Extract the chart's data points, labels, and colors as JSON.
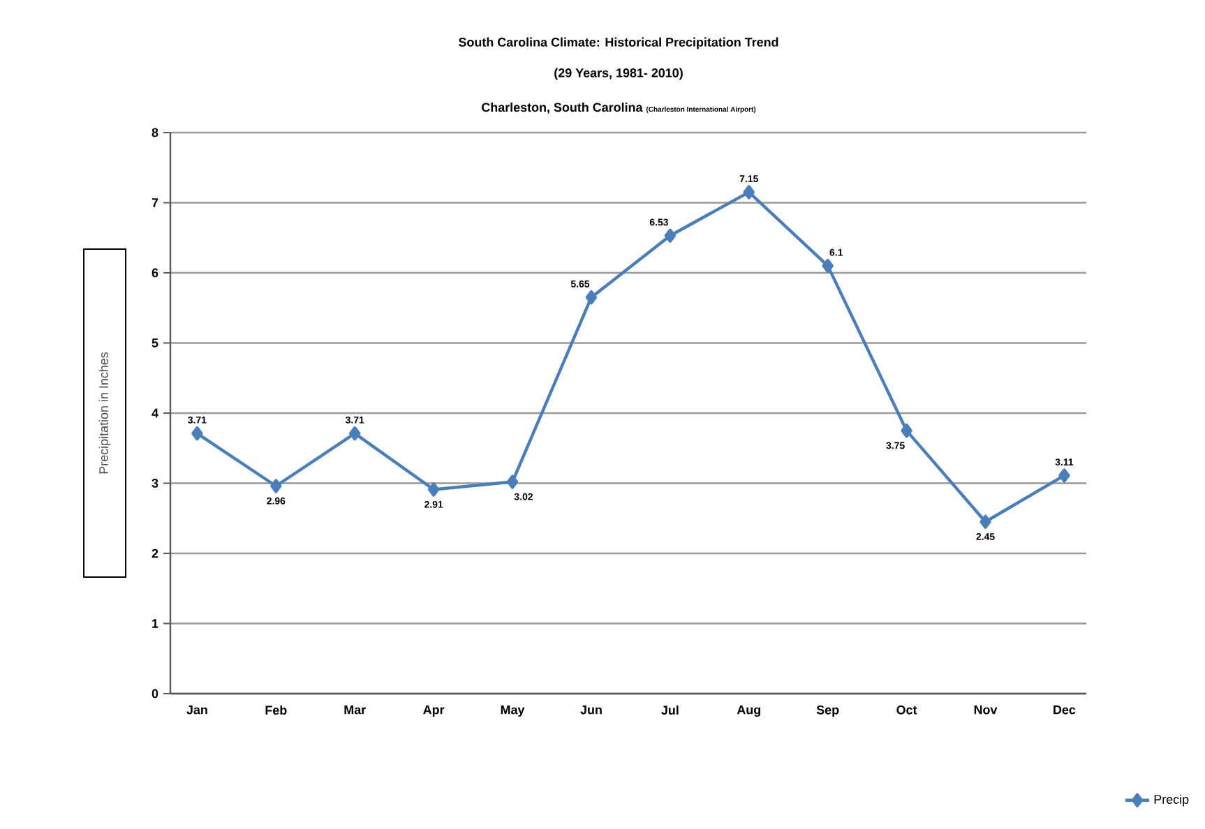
{
  "chart_data": {
    "type": "line",
    "title": "South Carolina Climate: Historical Precipitation Trend",
    "subtitle": "(29 Years, 1981- 2010)",
    "annotations": [
      "Charleston, South Carolina",
      "(Charleston International Airport)"
    ],
    "ylabel": "Precipitation in Inches",
    "categories": [
      "Jan",
      "Feb",
      "Mar",
      "Apr",
      "May",
      "Jun",
      "Jul",
      "Aug",
      "Sep",
      "Oct",
      "Nov",
      "Dec"
    ],
    "series": [
      {
        "name": "Precip",
        "color": "#4a7ebb",
        "values": [
          3.71,
          2.96,
          3.71,
          2.91,
          3.02,
          5.65,
          6.53,
          7.15,
          6.1,
          3.75,
          2.45,
          3.11
        ]
      }
    ],
    "ylim": [
      0,
      8
    ],
    "yticks": [
      0,
      1,
      2,
      3,
      4,
      5,
      6,
      7,
      8
    ],
    "grid": "y",
    "legend": "bottom right",
    "marker": "diamond",
    "line_style": "solid",
    "data_labels": true
  }
}
